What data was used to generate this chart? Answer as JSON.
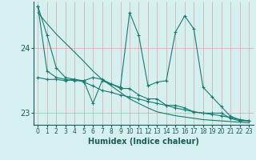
{
  "xlabel": "Humidex (Indice chaleur)",
  "bg_color": "#d6f0ef",
  "line_color": "#1a7a6e",
  "xlim": [
    -0.5,
    23.5
  ],
  "ylim": [
    22.82,
    24.72
  ],
  "yticks": [
    23,
    24
  ],
  "xticks": [
    0,
    1,
    2,
    3,
    4,
    5,
    6,
    7,
    8,
    9,
    10,
    11,
    12,
    13,
    14,
    15,
    16,
    17,
    18,
    19,
    20,
    21,
    22,
    23
  ],
  "series1": [
    24.65,
    24.2,
    23.7,
    23.55,
    23.52,
    23.5,
    23.55,
    23.52,
    23.45,
    23.4,
    24.55,
    24.2,
    23.42,
    23.48,
    23.5,
    24.25,
    24.5,
    24.3,
    23.4,
    23.25,
    23.1,
    22.95,
    22.9,
    22.88
  ],
  "series2": [
    24.65,
    23.65,
    23.55,
    23.52,
    23.5,
    23.5,
    23.15,
    23.5,
    23.45,
    23.38,
    23.38,
    23.28,
    23.22,
    23.22,
    23.12,
    23.12,
    23.08,
    23.02,
    23.0,
    23.0,
    23.0,
    22.92,
    22.88,
    22.88
  ],
  "series3": [
    23.55,
    23.52,
    23.52,
    23.5,
    23.52,
    23.48,
    23.42,
    23.35,
    23.32,
    23.28,
    23.25,
    23.22,
    23.18,
    23.15,
    23.12,
    23.08,
    23.05,
    23.02,
    23.0,
    22.98,
    22.96,
    22.93,
    22.9,
    22.88
  ],
  "trend": [
    24.55,
    24.38,
    24.22,
    24.08,
    23.94,
    23.8,
    23.65,
    23.52,
    23.42,
    23.32,
    23.22,
    23.15,
    23.08,
    23.02,
    22.99,
    22.96,
    22.94,
    22.92,
    22.9,
    22.89,
    22.88,
    22.87,
    22.86,
    22.85
  ]
}
